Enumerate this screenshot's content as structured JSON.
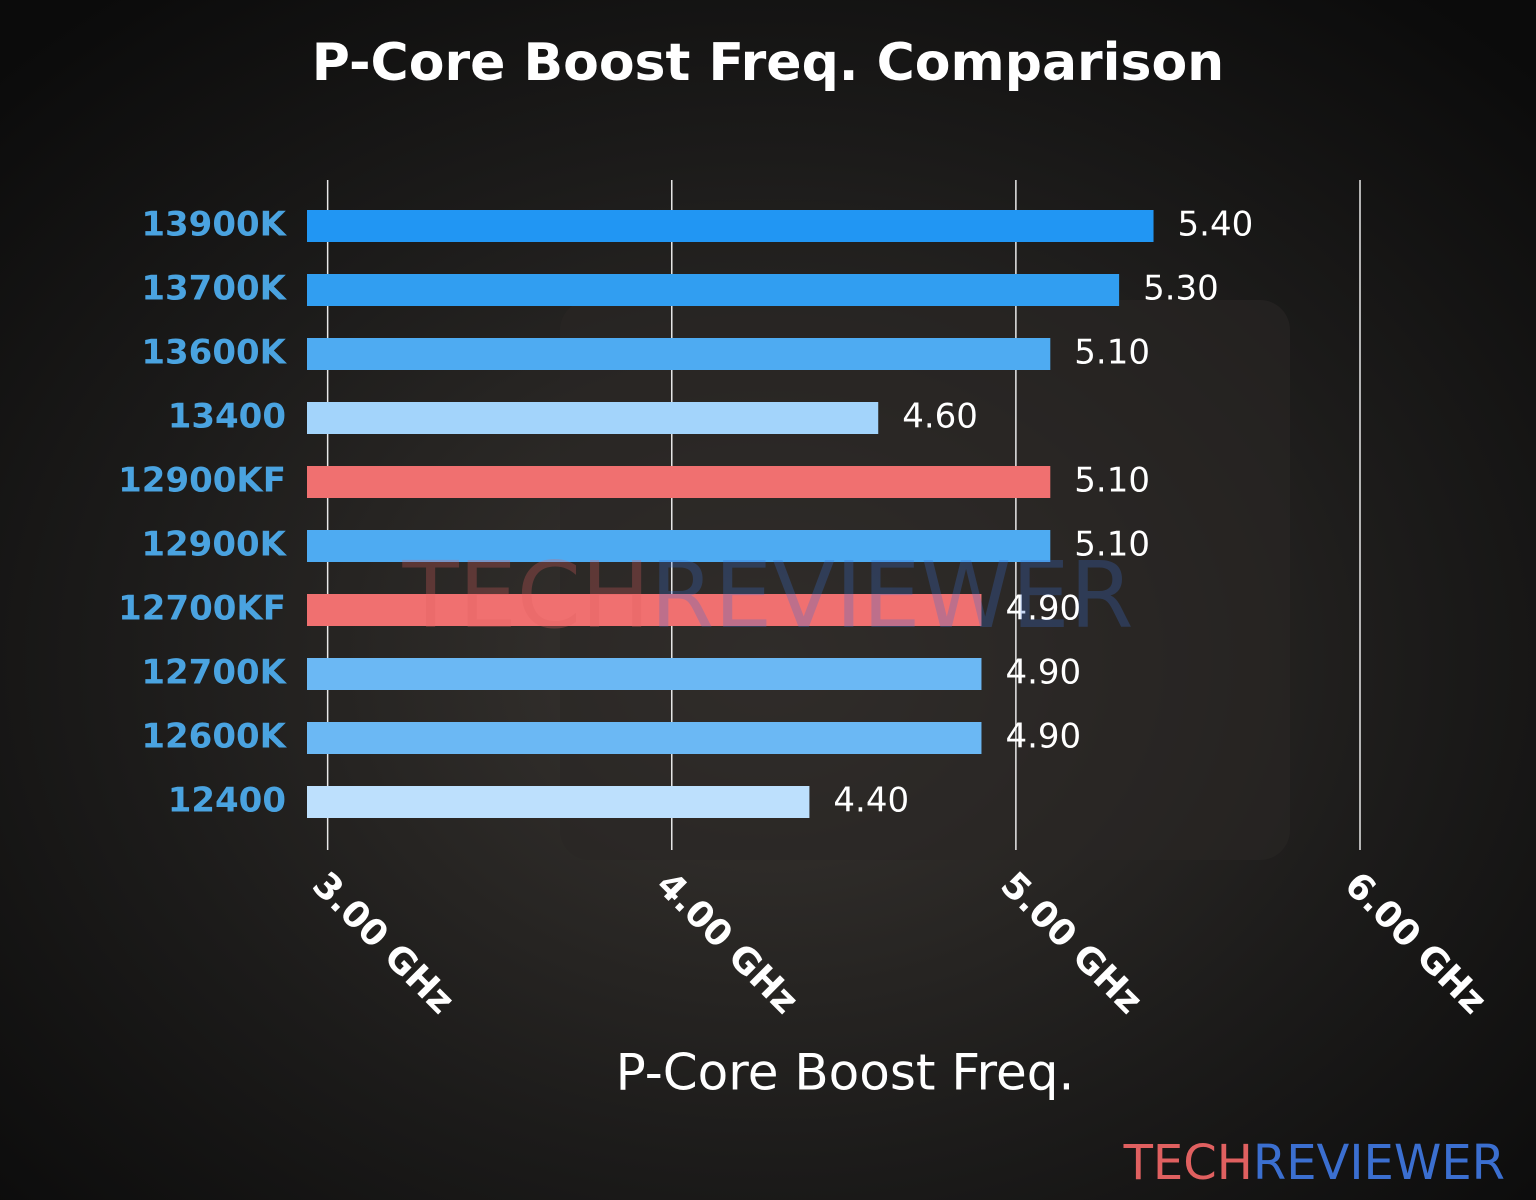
{
  "chart_data": {
    "type": "hbar",
    "title": "P-Core Boost Freq. Comparison",
    "x_label": "P-Core Boost Freq.",
    "categories": [
      "13900K",
      "13700K",
      "13600K",
      "13400",
      "12900KF",
      "12900K",
      "12700KF",
      "12700K",
      "12600K",
      "12400"
    ],
    "values": [
      5.4,
      5.3,
      5.1,
      4.6,
      5.1,
      5.1,
      4.9,
      4.9,
      4.9,
      4.4
    ],
    "value_labels": [
      "5.40",
      "5.30",
      "5.10",
      "4.60",
      "5.10",
      "5.10",
      "4.90",
      "4.90",
      "4.90",
      "4.40"
    ],
    "colors": [
      "#2196f3",
      "#319ef1",
      "#4eabf2",
      "#a3d4fb",
      "#f07070",
      "#4eabf2",
      "#f07070",
      "#6bb8f4",
      "#6bb8f4",
      "#bde0fd"
    ],
    "xlim": [
      2.94,
      6.0
    ],
    "xticks": [
      {
        "value": 3,
        "label": "3.00 GHz"
      },
      {
        "value": 4,
        "label": "4.00 GHz"
      },
      {
        "value": 5,
        "label": "5.00 GHz"
      },
      {
        "value": 6,
        "label": "6.00 GHz"
      }
    ],
    "grid": true
  },
  "branding": {
    "tech": "TECH",
    "reviewer": "REVIEWER"
  }
}
